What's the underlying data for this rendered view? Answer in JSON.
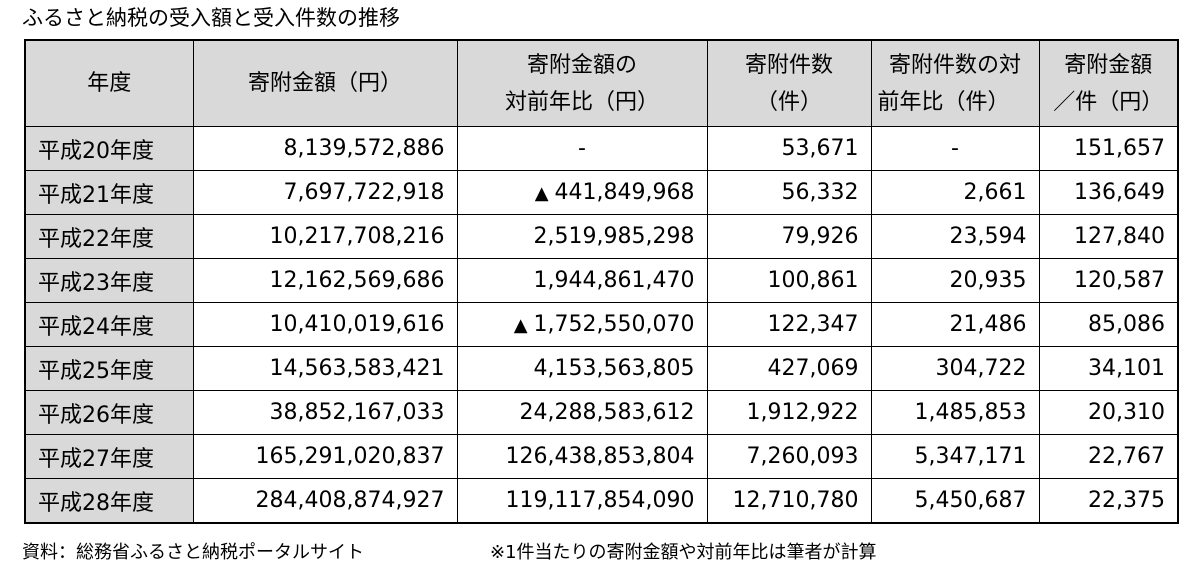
{
  "title": "ふるさと納税の受入額と受入件数の推移",
  "chart_data": {
    "type": "table",
    "columns": [
      {
        "line1": "年度",
        "line2": ""
      },
      {
        "line1": "寄附金額（円）",
        "line2": ""
      },
      {
        "line1": "寄附金額の",
        "line2": "対前年比（円）"
      },
      {
        "line1": "寄附件数",
        "line2": "（件）"
      },
      {
        "line1": "寄附件数の対",
        "line2": "前年比（件）"
      },
      {
        "line1": "寄附金額",
        "line2": "／件（円）"
      }
    ],
    "rows": [
      {
        "year": "平成20年度",
        "amount": "8,139,572,886",
        "amount_yoy": "-",
        "amount_yoy_decrease": false,
        "count": "53,671",
        "count_yoy": "-",
        "per_item": "151,657"
      },
      {
        "year": "平成21年度",
        "amount": "7,697,722,918",
        "amount_yoy": "441,849,968",
        "amount_yoy_decrease": true,
        "count": "56,332",
        "count_yoy": "2,661",
        "per_item": "136,649"
      },
      {
        "year": "平成22年度",
        "amount": "10,217,708,216",
        "amount_yoy": "2,519,985,298",
        "amount_yoy_decrease": false,
        "count": "79,926",
        "count_yoy": "23,594",
        "per_item": "127,840"
      },
      {
        "year": "平成23年度",
        "amount": "12,162,569,686",
        "amount_yoy": "1,944,861,470",
        "amount_yoy_decrease": false,
        "count": "100,861",
        "count_yoy": "20,935",
        "per_item": "120,587"
      },
      {
        "year": "平成24年度",
        "amount": "10,410,019,616",
        "amount_yoy": "1,752,550,070",
        "amount_yoy_decrease": true,
        "count": "122,347",
        "count_yoy": "21,486",
        "per_item": "85,086"
      },
      {
        "year": "平成25年度",
        "amount": "14,563,583,421",
        "amount_yoy": "4,153,563,805",
        "amount_yoy_decrease": false,
        "count": "427,069",
        "count_yoy": "304,722",
        "per_item": "34,101"
      },
      {
        "year": "平成26年度",
        "amount": "38,852,167,033",
        "amount_yoy": "24,288,583,612",
        "amount_yoy_decrease": false,
        "count": "1,912,922",
        "count_yoy": "1,485,853",
        "per_item": "20,310"
      },
      {
        "year": "平成27年度",
        "amount": "165,291,020,837",
        "amount_yoy": "126,438,853,804",
        "amount_yoy_decrease": false,
        "count": "7,260,093",
        "count_yoy": "5,347,171",
        "per_item": "22,767"
      },
      {
        "year": "平成28年度",
        "amount": "284,408,874,927",
        "amount_yoy": "119,117,854,090",
        "amount_yoy_decrease": false,
        "count": "12,710,780",
        "count_yoy": "5,450,687",
        "per_item": "22,375"
      }
    ],
    "decrease_marker": "▲"
  },
  "source_note": "資料：総務省ふるさと納税ポータルサイト",
  "footnote": "※1件当たりの寄附金額や対前年比は筆者が計算"
}
